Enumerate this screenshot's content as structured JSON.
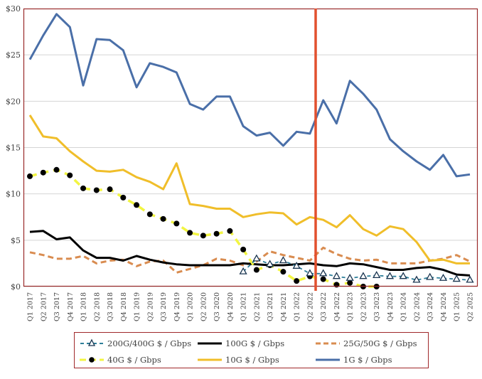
{
  "chart_data": {
    "type": "line",
    "title": "",
    "xlabel": "",
    "ylabel": "",
    "ylim": [
      0,
      30
    ],
    "yticks": [
      0,
      5,
      10,
      15,
      20,
      25,
      30
    ],
    "ytick_labels": [
      "$0",
      "$5",
      "$10",
      "$15",
      "$20",
      "$25",
      "$30"
    ],
    "grid": "horizontal",
    "legend_position": "bottom",
    "annotation": {
      "type": "vertical-line",
      "between": [
        "Q2 2022",
        "Q3 2022"
      ],
      "color": "#e2502e"
    },
    "categories": [
      "Q1 2017",
      "Q2 2017",
      "Q3 2017",
      "Q4 2017",
      "Q1 2018",
      "Q2 2018",
      "Q3 2018",
      "Q4 2018",
      "Q1 2019",
      "Q2 2019",
      "Q3 2019",
      "Q4 2019",
      "Q1 2020",
      "Q2 2020",
      "Q3 2020",
      "Q4 2020",
      "Q1 2021",
      "Q2 2021",
      "Q3 2021",
      "Q4 2021",
      "Q1 2022",
      "Q2 2022",
      "Q3 2022",
      "Q4 2022",
      "Q1 2023",
      "Q2 2023",
      "Q3 2023",
      "Q4 2023",
      "Q1 2024",
      "Q2 2024",
      "Q3 2024",
      "Q4 2024",
      "Q1 2025",
      "Q2 2025"
    ],
    "series": [
      {
        "name": "1G $ / Gbps",
        "color": "#4a6fa8",
        "style": "solid",
        "values": [
          24.5,
          27.1,
          29.4,
          28.0,
          21.7,
          26.7,
          26.6,
          25.5,
          21.5,
          24.1,
          23.7,
          23.1,
          19.7,
          19.1,
          20.5,
          20.5,
          17.3,
          16.3,
          16.6,
          15.2,
          16.7,
          16.5,
          20.1,
          17.6,
          22.2,
          20.8,
          19.1,
          15.9,
          14.6,
          13.5,
          12.6,
          14.2,
          11.9,
          12.1
        ]
      },
      {
        "name": "10G $ / Gbps",
        "color": "#f0be2a",
        "style": "solid",
        "values": [
          18.5,
          16.2,
          16.0,
          14.6,
          13.5,
          12.5,
          12.4,
          12.6,
          11.8,
          11.3,
          10.5,
          13.3,
          8.9,
          8.7,
          8.4,
          8.4,
          7.5,
          7.8,
          8.0,
          7.9,
          6.7,
          7.5,
          7.2,
          6.4,
          7.7,
          6.2,
          5.5,
          6.5,
          6.2,
          4.8,
          2.8,
          2.9,
          2.5,
          2.5
        ]
      },
      {
        "name": "40G $ / Gbps",
        "color": "#f2f542",
        "style": "dashed-dots",
        "values": [
          11.9,
          12.3,
          12.6,
          12.0,
          10.6,
          10.4,
          10.5,
          9.6,
          8.8,
          7.8,
          7.3,
          6.8,
          5.8,
          5.5,
          5.7,
          6.0,
          4.0,
          1.8,
          2.3,
          1.6,
          0.6,
          1.1,
          0.8,
          0.2,
          0.4,
          0.0,
          0.0,
          null,
          null,
          null,
          null,
          null,
          null,
          null
        ]
      },
      {
        "name": "25G/50G $ / Gbps",
        "color": "#d98c50",
        "style": "dashed",
        "values": [
          3.7,
          3.4,
          3.0,
          3.0,
          3.3,
          2.5,
          2.8,
          2.9,
          2.2,
          2.7,
          2.8,
          1.5,
          1.9,
          2.3,
          3.0,
          2.8,
          2.3,
          2.7,
          3.8,
          3.4,
          3.1,
          2.8,
          4.2,
          3.5,
          3.0,
          2.8,
          2.9,
          2.5,
          2.5,
          2.5,
          2.8,
          3.0,
          3.4,
          2.7
        ]
      },
      {
        "name": "100G $ / Gbps",
        "color": "#000000",
        "style": "solid",
        "values": [
          5.9,
          6.0,
          5.1,
          5.3,
          3.9,
          3.1,
          3.1,
          2.8,
          3.3,
          2.9,
          2.6,
          2.4,
          2.3,
          2.3,
          2.3,
          2.3,
          2.5,
          2.4,
          2.3,
          2.3,
          2.4,
          2.5,
          2.3,
          2.2,
          2.5,
          2.4,
          2.1,
          1.8,
          1.8,
          2.0,
          2.1,
          1.8,
          1.3,
          1.2
        ]
      },
      {
        "name": "200G/400G $ / Gbps",
        "color": "#2e7f9a",
        "style": "dashed-triangles",
        "values": [
          null,
          null,
          null,
          null,
          null,
          null,
          null,
          null,
          null,
          null,
          null,
          null,
          null,
          null,
          null,
          null,
          1.6,
          3.0,
          2.4,
          2.8,
          2.2,
          1.4,
          1.4,
          1.1,
          0.9,
          1.1,
          1.2,
          1.1,
          1.1,
          0.7,
          1.0,
          0.9,
          0.8,
          0.7
        ]
      }
    ]
  },
  "legend": {
    "items": [
      {
        "label": "200G/400G $ / Gbps",
        "marker": "dashed-triangles"
      },
      {
        "label": "100G $ / Gbps",
        "marker": "solid"
      },
      {
        "label": "25G/50G $ / Gbps",
        "marker": "dashed"
      },
      {
        "label": "40G $ / Gbps",
        "marker": "dashed-dots"
      },
      {
        "label": "10G $ / Gbps",
        "marker": "solid"
      },
      {
        "label": "1G $ / Gbps",
        "marker": "solid"
      }
    ]
  }
}
